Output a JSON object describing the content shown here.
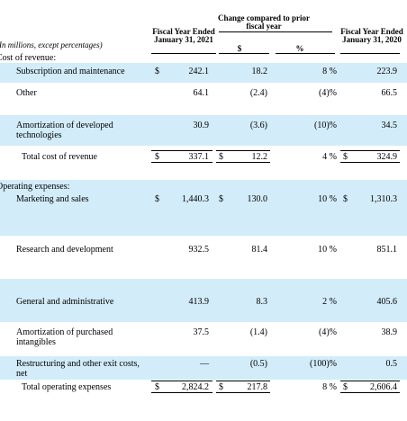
{
  "header": {
    "current_year": "Fiscal Year Ended January 31, 2021",
    "change": "Change compared to prior fiscal year",
    "change_dollar": "$",
    "change_percent": "%",
    "prior_year": "Fiscal Year Ended January 31, 2020",
    "note": "(In millions, except percentages)"
  },
  "table": {
    "rows": [
      {
        "label": "Cost of revenue:"
      },
      {
        "label": "Subscription and maintenance",
        "cells": [
          "$",
          "242.1",
          null,
          "18.2",
          "8 %",
          null,
          "223.9"
        ]
      },
      {
        "label": "Other",
        "cells": [
          null,
          "64.1",
          null,
          "(2.4)",
          "(4)%",
          null,
          "66.5"
        ]
      },
      {
        "label": "Amortization of developed technologies",
        "cells": [
          null,
          "30.9",
          null,
          "(3.6)",
          "(10)%",
          null,
          "34.5"
        ]
      },
      {
        "label": "Total cost of revenue",
        "cells": [
          "$",
          "337.1",
          "$",
          "12.2",
          "4 %",
          "$",
          "324.9"
        ]
      },
      {
        "label": "Operating expenses:"
      },
      {
        "label": "Marketing and sales",
        "cells": [
          "$",
          "1,440.3",
          "$",
          "130.0",
          "10 %",
          "$",
          "1,310.3"
        ]
      },
      {
        "label": "Research and development",
        "cells": [
          null,
          "932.5",
          null,
          "81.4",
          "10 %",
          null,
          "851.1"
        ]
      },
      {
        "label": "General and administrative",
        "cells": [
          null,
          "413.9",
          null,
          "8.3",
          "2 %",
          null,
          "405.6"
        ]
      },
      {
        "label": "Amortization of purchased intangibles",
        "cells": [
          null,
          "37.5",
          null,
          "(1.4)",
          "(4)%",
          null,
          "38.9"
        ]
      },
      {
        "label": "Restructuring and other exit costs, net",
        "cells": [
          null,
          "—",
          null,
          "(0.5)",
          "(100)%",
          null,
          "0.5"
        ]
      },
      {
        "label": "Total operating expenses",
        "cells": [
          "$",
          "2,824.2",
          "$",
          "217.8",
          "8 %",
          "$",
          "2,606.4"
        ]
      }
    ]
  }
}
